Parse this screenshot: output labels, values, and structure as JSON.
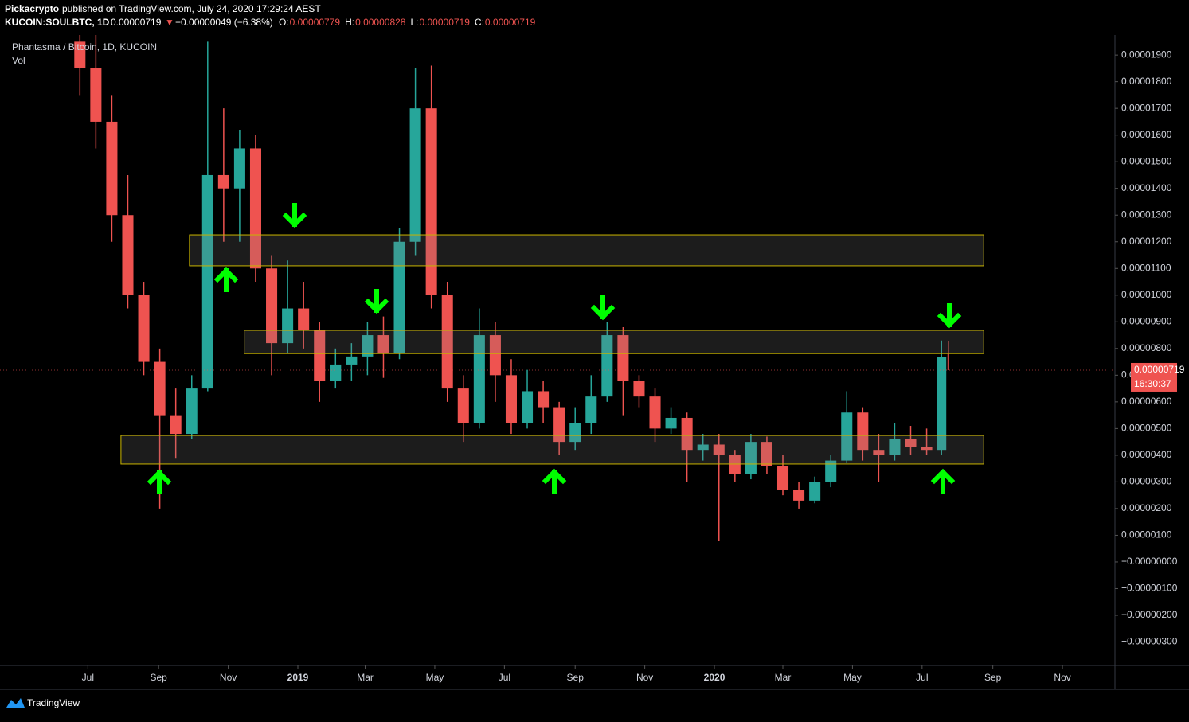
{
  "header": {
    "publisher": "Pickacrypto",
    "published": "published on TradingView.com, July 24, 2020 17:29:24 AEST",
    "symbol": "KUCOIN:SOULBTC, 1D",
    "price": "0.00000719",
    "arrow": "▼",
    "change": "−0.00000049 (−6.38%)",
    "ohlc": [
      {
        "label": "O:",
        "value": "0.00000779"
      },
      {
        "label": "H:",
        "value": "0.00000828"
      },
      {
        "label": "L:",
        "value": "0.00000719"
      },
      {
        "label": "C:",
        "value": "0.00000719"
      }
    ]
  },
  "chart_data": {
    "type": "candlestick",
    "title": "Phantasma / Bitcoin, 1D, KUCOIN",
    "subtitle": "Vol",
    "up_color": "#26a69a",
    "down_color": "#ef5350",
    "x": [
      "2018-06-17",
      "2018-07-01",
      "2018-07-15",
      "2018-07-29",
      "2018-08-12",
      "2018-08-26",
      "2018-09-09",
      "2018-09-23",
      "2018-10-07",
      "2018-10-21",
      "2018-11-04",
      "2018-11-18",
      "2018-12-02",
      "2018-12-16",
      "2018-12-30",
      "2019-01-13",
      "2019-01-27",
      "2019-02-10",
      "2019-02-24",
      "2019-03-10",
      "2019-03-24",
      "2019-04-07",
      "2019-04-21",
      "2019-05-05",
      "2019-05-19",
      "2019-06-02",
      "2019-06-16",
      "2019-06-30",
      "2019-07-14",
      "2019-07-28",
      "2019-08-11",
      "2019-08-25",
      "2019-09-08",
      "2019-09-22",
      "2019-10-06",
      "2019-10-20",
      "2019-11-03",
      "2019-11-17",
      "2019-12-01",
      "2019-12-15",
      "2019-12-29",
      "2020-01-12",
      "2020-01-26",
      "2020-02-09",
      "2020-02-23",
      "2020-03-08",
      "2020-03-22",
      "2020-04-05",
      "2020-04-19",
      "2020-05-03",
      "2020-05-17",
      "2020-05-31",
      "2020-06-14",
      "2020-06-28",
      "2020-07-12",
      "2020-07-24"
    ],
    "open": [
      1.95e-05,
      1.85e-05,
      1.65e-05,
      1.3e-05,
      1e-05,
      7.5e-06,
      5.5e-06,
      4.8e-06,
      6.5e-06,
      1.45e-05,
      1.4e-05,
      1.55e-05,
      1.1e-05,
      8.2e-06,
      9.5e-06,
      8.7e-06,
      6.8e-06,
      7.4e-06,
      7.7e-06,
      8.5e-06,
      7.8e-06,
      1.2e-05,
      1.7e-05,
      1e-05,
      6.5e-06,
      5.2e-06,
      8.5e-06,
      7e-06,
      5.2e-06,
      6.4e-06,
      5.8e-06,
      4.5e-06,
      5.2e-06,
      6.2e-06,
      8.5e-06,
      6.8e-06,
      6.2e-06,
      5e-06,
      5.4e-06,
      4.2e-06,
      4.4e-06,
      4e-06,
      3.3e-06,
      4.5e-06,
      3.6e-06,
      2.7e-06,
      2.3e-06,
      3e-06,
      3.8e-06,
      5.6e-06,
      4.2e-06,
      4e-06,
      4.6e-06,
      4.3e-06,
      4.2e-06,
      7.79e-06
    ],
    "high": [
      1.99e-05,
      1.98e-05,
      1.75e-05,
      1.45e-05,
      1.05e-05,
      8e-06,
      6.5e-06,
      7e-06,
      1.95e-05,
      1.7e-05,
      1.62e-05,
      1.6e-05,
      1.15e-05,
      1.13e-05,
      1.05e-05,
      9e-06,
      8e-06,
      8.2e-06,
      9e-06,
      9.2e-06,
      1.25e-05,
      1.85e-05,
      1.86e-05,
      1.05e-05,
      7e-06,
      9.5e-06,
      9e-06,
      7.6e-06,
      7.2e-06,
      6.8e-06,
      6e-06,
      5.8e-06,
      7e-06,
      9e-06,
      8.8e-06,
      7e-06,
      6.5e-06,
      5.8e-06,
      5.6e-06,
      4.8e-06,
      4.8e-06,
      4.2e-06,
      4.8e-06,
      4.7e-06,
      4e-06,
      3e-06,
      3.2e-06,
      4e-06,
      6.4e-06,
      5.8e-06,
      4.8e-06,
      5.2e-06,
      5.1e-06,
      5e-06,
      8.3e-06,
      8.28e-06
    ],
    "low": [
      1.75e-05,
      1.55e-05,
      1.2e-05,
      9.5e-06,
      7e-06,
      2e-06,
      3.9e-06,
      4.6e-06,
      6.4e-06,
      1.2e-05,
      1.2e-05,
      1.05e-05,
      7e-06,
      7.8e-06,
      8e-06,
      6e-06,
      6.5e-06,
      6.8e-06,
      7e-06,
      6.9e-06,
      7.6e-06,
      1.15e-05,
      9.5e-06,
      6e-06,
      4.5e-06,
      5e-06,
      6e-06,
      4.8e-06,
      5e-06,
      5.2e-06,
      4e-06,
      4.2e-06,
      4.8e-06,
      6e-06,
      5.5e-06,
      5.8e-06,
      4.5e-06,
      4.8e-06,
      3e-06,
      3.8e-06,
      8e-07,
      3e-06,
      3.1e-06,
      3.3e-06,
      2.5e-06,
      2e-06,
      2.2e-06,
      2.8e-06,
      3.7e-06,
      3.8e-06,
      3e-06,
      3.8e-06,
      4e-06,
      4e-06,
      4e-06,
      7.19e-06
    ],
    "close": [
      1.85e-05,
      1.65e-05,
      1.3e-05,
      1e-05,
      7.5e-06,
      5.5e-06,
      4.8e-06,
      6.5e-06,
      1.45e-05,
      1.4e-05,
      1.55e-05,
      1.1e-05,
      8.2e-06,
      9.5e-06,
      8.7e-06,
      6.8e-06,
      7.4e-06,
      7.7e-06,
      8.5e-06,
      7.8e-06,
      1.2e-05,
      1.7e-05,
      1e-05,
      6.5e-06,
      5.2e-06,
      8.5e-06,
      7e-06,
      5.2e-06,
      6.4e-06,
      5.8e-06,
      4.5e-06,
      5.2e-06,
      6.2e-06,
      8.5e-06,
      6.8e-06,
      6.2e-06,
      5e-06,
      5.4e-06,
      4.2e-06,
      4.4e-06,
      4e-06,
      3.3e-06,
      4.5e-06,
      3.6e-06,
      2.7e-06,
      2.3e-06,
      3e-06,
      3.8e-06,
      5.6e-06,
      4.2e-06,
      4e-06,
      4.6e-06,
      4.3e-06,
      4.2e-06,
      7.68e-06,
      7.19e-06
    ],
    "last_countdown": "16:30:37",
    "zones": [
      {
        "x": [
          "2018-09-28",
          "2020-08-24"
        ],
        "y": [
          1.11e-05,
          1.226e-05
        ]
      },
      {
        "x": [
          "2018-11-15",
          "2020-08-24"
        ],
        "y": [
          7.81e-06,
          8.68e-06
        ]
      },
      {
        "x": [
          "2018-07-30",
          "2020-08-24"
        ],
        "y": [
          3.67e-06,
          4.74e-06
        ]
      }
    ],
    "zone_color": "#c9b400",
    "xlim": [
      "2018-04-15",
      "2020-12-17"
    ],
    "xticks": [
      {
        "value": "2018-07-01",
        "label": "Jul"
      },
      {
        "value": "2018-09-01",
        "label": "Sep"
      },
      {
        "value": "2018-11-01",
        "label": "Nov"
      },
      {
        "value": "2019-01-01",
        "label": "2019"
      },
      {
        "value": "2019-03-01",
        "label": "Mar"
      },
      {
        "value": "2019-05-01",
        "label": "May"
      },
      {
        "value": "2019-07-01",
        "label": "Jul"
      },
      {
        "value": "2019-09-01",
        "label": "Sep"
      },
      {
        "value": "2019-11-01",
        "label": "Nov"
      },
      {
        "value": "2020-01-01",
        "label": "2020"
      },
      {
        "value": "2020-03-01",
        "label": "Mar"
      },
      {
        "value": "2020-05-01",
        "label": "May"
      },
      {
        "value": "2020-07-01",
        "label": "Jul"
      },
      {
        "value": "2020-09-01",
        "label": "Sep"
      },
      {
        "value": "2020-11-01",
        "label": "Nov"
      }
    ],
    "ylim": [
      -3.88e-06,
      1.975e-05
    ],
    "yticks": [
      {
        "value": 1.9e-05,
        "label": "0.00001900"
      },
      {
        "value": 1.8e-05,
        "label": "0.00001800"
      },
      {
        "value": 1.7e-05,
        "label": "0.00001700"
      },
      {
        "value": 1.6e-05,
        "label": "0.00001600"
      },
      {
        "value": 1.5e-05,
        "label": "0.00001500"
      },
      {
        "value": 1.4e-05,
        "label": "0.00001400"
      },
      {
        "value": 1.3e-05,
        "label": "0.00001300"
      },
      {
        "value": 1.2e-05,
        "label": "0.00001200"
      },
      {
        "value": 1.1e-05,
        "label": "0.00001100"
      },
      {
        "value": 1e-05,
        "label": "0.00001000"
      },
      {
        "value": 9e-06,
        "label": "0.00000900"
      },
      {
        "value": 8e-06,
        "label": "0.00000800"
      },
      {
        "value": 7e-06,
        "label": "0.00000700"
      },
      {
        "value": 6e-06,
        "label": "0.00000600"
      },
      {
        "value": 5e-06,
        "label": "0.00000500"
      },
      {
        "value": 4e-06,
        "label": "0.00000400"
      },
      {
        "value": 3e-06,
        "label": "0.00000300"
      },
      {
        "value": 2e-06,
        "label": "0.00000200"
      },
      {
        "value": 1e-06,
        "label": "0.00000100"
      },
      {
        "value": 0,
        "label": "−0.00000000"
      },
      {
        "value": -1e-06,
        "label": "−0.00000100"
      },
      {
        "value": -2e-06,
        "label": "−0.00000200"
      },
      {
        "value": -3e-06,
        "label": "−0.00000300"
      }
    ]
  },
  "footer": {
    "brand": "TradingView"
  }
}
